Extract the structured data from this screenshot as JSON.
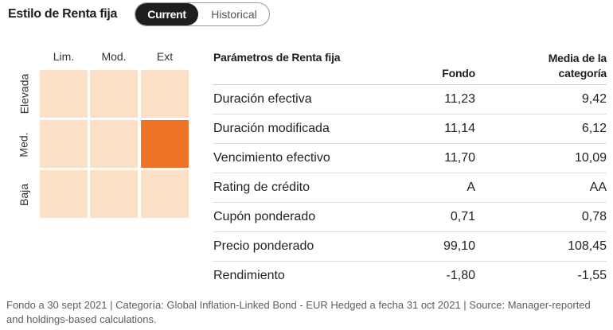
{
  "header": {
    "title": "Estilo de Renta fija",
    "toggle": {
      "current": "Current",
      "historical": "Historical",
      "selected": "current"
    }
  },
  "style_box": {
    "columns": [
      "Lim.",
      "Mod.",
      "Ext"
    ],
    "rows": [
      "Elevada",
      "Med.",
      "Baja"
    ],
    "highlighted": {
      "row": "Med.",
      "column": "Ext"
    },
    "colors": {
      "cell": "#fde0c8",
      "highlight": "#ee7325"
    }
  },
  "params_table": {
    "headers": {
      "label": "Parámetros de Renta fija",
      "fondo": "Fondo",
      "media": "Media de la categoría"
    },
    "rows": [
      {
        "label": "Duración efectiva",
        "fondo": "11,23",
        "media": "9,42"
      },
      {
        "label": "Duración modificada",
        "fondo": "11,14",
        "media": "6,12"
      },
      {
        "label": "Vencimiento efectivo",
        "fondo": "11,70",
        "media": "10,09"
      },
      {
        "label": "Rating de crédito",
        "fondo": "A",
        "media": "AA"
      },
      {
        "label": "Cupón ponderado",
        "fondo": "0,71",
        "media": "0,78"
      },
      {
        "label": "Precio ponderado",
        "fondo": "99,10",
        "media": "108,45"
      },
      {
        "label": "Rendimiento",
        "fondo": "-1,80",
        "media": "-1,55"
      }
    ]
  },
  "footnote": "Fondo a 30 sept 2021 | Categoría: Global Inflation-Linked Bond - EUR Hedged a fecha 31 oct 2021 | Source: Manager-reported and holdings-based calculations."
}
